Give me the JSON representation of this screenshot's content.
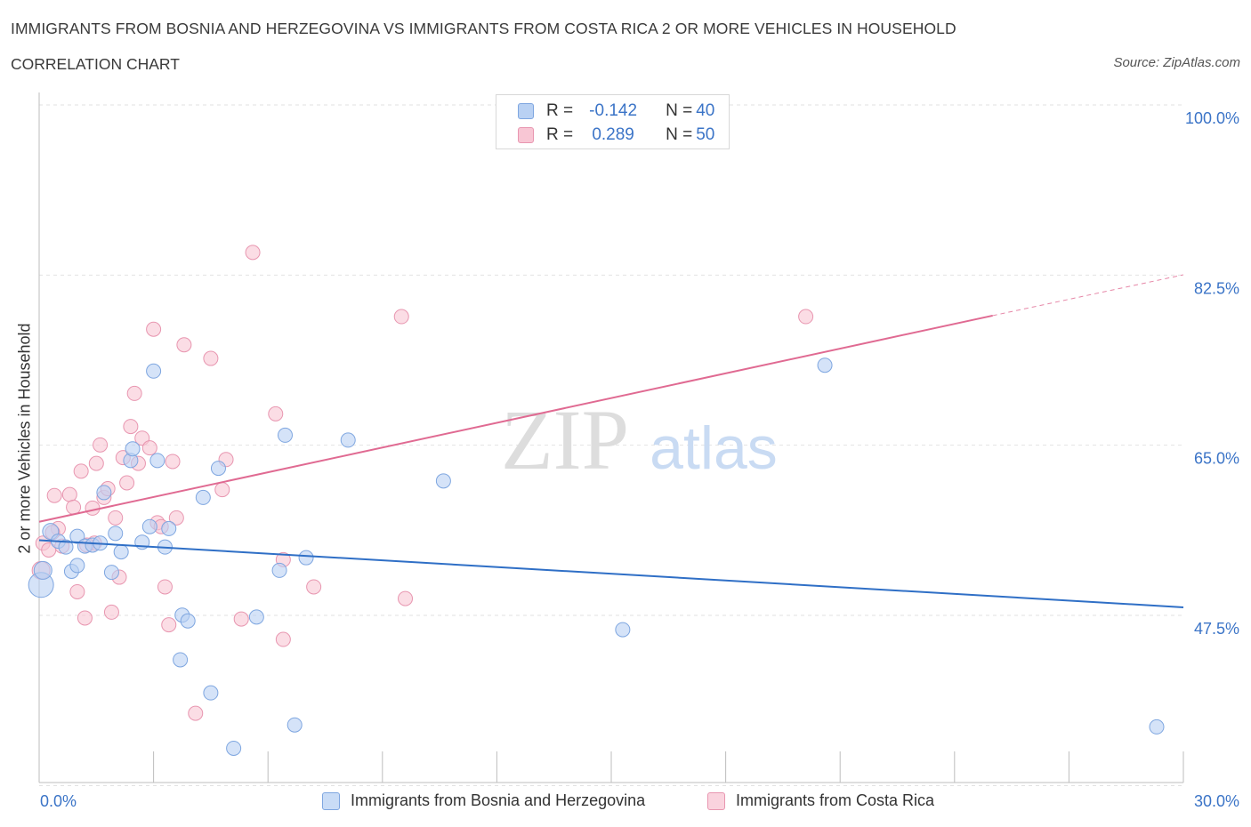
{
  "header": {
    "title": "IMMIGRANTS FROM BOSNIA AND HERZEGOVINA VS IMMIGRANTS FROM COSTA RICA 2 OR MORE VEHICLES IN HOUSEHOLD",
    "subtitle": "CORRELATION CHART",
    "source": "Source: ZipAtlas.com"
  },
  "watermark": {
    "zip": "ZIP",
    "atlas": "atlas"
  },
  "legend": {
    "series1": {
      "r_label": "R =",
      "r_value": "-0.142",
      "n_label": "N =",
      "n_value": "40"
    },
    "series2": {
      "r_label": "R =",
      "r_value": "0.289",
      "n_label": "N =",
      "n_value": "50"
    }
  },
  "colors": {
    "blue_fill": "#b9d1f3",
    "blue_stroke": "#7ea6e0",
    "blue_line": "#2f6fc6",
    "pink_fill": "#f8c6d4",
    "pink_stroke": "#e896b0",
    "pink_line": "#e06a92",
    "tick_text": "#3b74c7",
    "grid": "#e2e2e2"
  },
  "chart_data": {
    "type": "scatter",
    "title": "IMMIGRANTS FROM BOSNIA AND HERZEGOVINA VS IMMIGRANTS FROM COSTA RICA 2 OR MORE VEHICLES IN HOUSEHOLD",
    "xlabel": "",
    "ylabel": "2 or more Vehicles in Household",
    "xlim": [
      0,
      30
    ],
    "ylim": [
      32.5,
      102
    ],
    "x_tick_labels": [
      "0.0%",
      "30.0%"
    ],
    "y_ticks": [
      100.0,
      82.5,
      65.0,
      47.5
    ],
    "y_tick_labels": [
      "100.0%",
      "82.5%",
      "65.0%",
      "47.5%"
    ],
    "legend_position": "top-center",
    "series": [
      {
        "name": "Immigrants from Bosnia and Herzegovina",
        "r": -0.142,
        "n": 40,
        "trend": {
          "x": [
            0,
            30
          ],
          "y": [
            56.6,
            49.7
          ]
        },
        "points": [
          {
            "x": 0.05,
            "y": 52.0,
            "s": 14
          },
          {
            "x": 0.1,
            "y": 53.5,
            "s": 10
          },
          {
            "x": 0.3,
            "y": 57.5,
            "s": 9
          },
          {
            "x": 0.5,
            "y": 56.5,
            "s": 8
          },
          {
            "x": 0.7,
            "y": 55.9,
            "s": 8
          },
          {
            "x": 0.85,
            "y": 53.4,
            "s": 8
          },
          {
            "x": 1.0,
            "y": 57.0,
            "s": 8
          },
          {
            "x": 1.2,
            "y": 56.0,
            "s": 8
          },
          {
            "x": 1.4,
            "y": 56.1,
            "s": 8
          },
          {
            "x": 1.6,
            "y": 56.3,
            "s": 8
          },
          {
            "x": 1.7,
            "y": 61.5,
            "s": 8
          },
          {
            "x": 1.9,
            "y": 53.3,
            "s": 8
          },
          {
            "x": 2.0,
            "y": 57.3,
            "s": 8
          },
          {
            "x": 2.15,
            "y": 55.4,
            "s": 8
          },
          {
            "x": 2.4,
            "y": 64.8,
            "s": 8
          },
          {
            "x": 2.45,
            "y": 66.0,
            "s": 8
          },
          {
            "x": 2.7,
            "y": 56.4,
            "s": 8
          },
          {
            "x": 2.9,
            "y": 58.0,
            "s": 8
          },
          {
            "x": 3.0,
            "y": 74.0,
            "s": 8
          },
          {
            "x": 3.1,
            "y": 64.8,
            "s": 8
          },
          {
            "x": 3.3,
            "y": 55.9,
            "s": 8
          },
          {
            "x": 3.4,
            "y": 57.8,
            "s": 8
          },
          {
            "x": 3.7,
            "y": 44.3,
            "s": 8
          },
          {
            "x": 3.75,
            "y": 48.9,
            "s": 8
          },
          {
            "x": 3.9,
            "y": 48.3,
            "s": 8
          },
          {
            "x": 4.3,
            "y": 61.0,
            "s": 8
          },
          {
            "x": 4.5,
            "y": 40.9,
            "s": 8
          },
          {
            "x": 4.7,
            "y": 64.0,
            "s": 8
          },
          {
            "x": 5.1,
            "y": 35.2,
            "s": 8
          },
          {
            "x": 5.7,
            "y": 48.7,
            "s": 8
          },
          {
            "x": 6.3,
            "y": 53.5,
            "s": 8
          },
          {
            "x": 6.45,
            "y": 67.4,
            "s": 8
          },
          {
            "x": 6.7,
            "y": 37.6,
            "s": 8
          },
          {
            "x": 7.0,
            "y": 54.8,
            "s": 8
          },
          {
            "x": 8.1,
            "y": 66.9,
            "s": 8
          },
          {
            "x": 10.6,
            "y": 62.7,
            "s": 8
          },
          {
            "x": 15.3,
            "y": 47.4,
            "s": 8
          },
          {
            "x": 20.6,
            "y": 74.6,
            "s": 8
          },
          {
            "x": 29.3,
            "y": 37.4,
            "s": 8
          },
          {
            "x": 1.0,
            "y": 54.0,
            "s": 8
          }
        ]
      },
      {
        "name": "Immigrants from Costa Rica",
        "r": 0.289,
        "n": 50,
        "trend": {
          "x": [
            0,
            25
          ],
          "y": [
            58.5,
            79.7
          ]
        },
        "trend_dashed": {
          "x": [
            25,
            30
          ],
          "y": [
            79.7,
            83.9
          ]
        },
        "points": [
          {
            "x": 0.05,
            "y": 53.5,
            "s": 10
          },
          {
            "x": 0.1,
            "y": 56.3,
            "s": 8
          },
          {
            "x": 0.25,
            "y": 55.6,
            "s": 8
          },
          {
            "x": 0.4,
            "y": 61.2,
            "s": 8
          },
          {
            "x": 0.5,
            "y": 57.8,
            "s": 8
          },
          {
            "x": 0.6,
            "y": 56.0,
            "s": 8
          },
          {
            "x": 0.8,
            "y": 61.3,
            "s": 8
          },
          {
            "x": 0.9,
            "y": 60.0,
            "s": 8
          },
          {
            "x": 1.0,
            "y": 51.3,
            "s": 8
          },
          {
            "x": 1.1,
            "y": 63.7,
            "s": 8
          },
          {
            "x": 1.2,
            "y": 48.6,
            "s": 8
          },
          {
            "x": 1.4,
            "y": 59.9,
            "s": 8
          },
          {
            "x": 1.45,
            "y": 56.3,
            "s": 8
          },
          {
            "x": 1.5,
            "y": 64.5,
            "s": 8
          },
          {
            "x": 1.6,
            "y": 66.4,
            "s": 8
          },
          {
            "x": 1.7,
            "y": 61.0,
            "s": 8
          },
          {
            "x": 1.8,
            "y": 61.9,
            "s": 8
          },
          {
            "x": 1.9,
            "y": 49.2,
            "s": 8
          },
          {
            "x": 2.0,
            "y": 58.9,
            "s": 8
          },
          {
            "x": 2.1,
            "y": 52.8,
            "s": 8
          },
          {
            "x": 2.2,
            "y": 65.1,
            "s": 8
          },
          {
            "x": 2.3,
            "y": 62.5,
            "s": 8
          },
          {
            "x": 2.4,
            "y": 68.3,
            "s": 8
          },
          {
            "x": 2.5,
            "y": 71.7,
            "s": 8
          },
          {
            "x": 2.6,
            "y": 64.5,
            "s": 8
          },
          {
            "x": 2.7,
            "y": 67.1,
            "s": 8
          },
          {
            "x": 2.9,
            "y": 66.1,
            "s": 8
          },
          {
            "x": 3.0,
            "y": 78.3,
            "s": 8
          },
          {
            "x": 3.1,
            "y": 58.4,
            "s": 8
          },
          {
            "x": 3.3,
            "y": 51.8,
            "s": 8
          },
          {
            "x": 3.4,
            "y": 47.9,
            "s": 8
          },
          {
            "x": 3.5,
            "y": 64.7,
            "s": 8
          },
          {
            "x": 3.6,
            "y": 58.9,
            "s": 8
          },
          {
            "x": 3.8,
            "y": 76.7,
            "s": 8
          },
          {
            "x": 4.1,
            "y": 38.8,
            "s": 8
          },
          {
            "x": 4.5,
            "y": 75.3,
            "s": 8
          },
          {
            "x": 4.8,
            "y": 61.8,
            "s": 8
          },
          {
            "x": 4.9,
            "y": 64.9,
            "s": 8
          },
          {
            "x": 5.3,
            "y": 48.5,
            "s": 8
          },
          {
            "x": 5.6,
            "y": 86.2,
            "s": 8
          },
          {
            "x": 6.2,
            "y": 69.6,
            "s": 8
          },
          {
            "x": 6.4,
            "y": 54.6,
            "s": 8
          },
          {
            "x": 6.4,
            "y": 46.4,
            "s": 8
          },
          {
            "x": 7.2,
            "y": 51.8,
            "s": 8
          },
          {
            "x": 9.5,
            "y": 79.6,
            "s": 8
          },
          {
            "x": 9.6,
            "y": 50.6,
            "s": 8
          },
          {
            "x": 20.1,
            "y": 79.6,
            "s": 8
          },
          {
            "x": 3.2,
            "y": 58.0,
            "s": 8
          },
          {
            "x": 0.35,
            "y": 57.4,
            "s": 8
          },
          {
            "x": 1.25,
            "y": 56.1,
            "s": 8
          }
        ]
      }
    ]
  },
  "bottom_legend": {
    "item1": "Immigrants from Bosnia and Herzegovina",
    "item2": "Immigrants from Costa Rica"
  }
}
